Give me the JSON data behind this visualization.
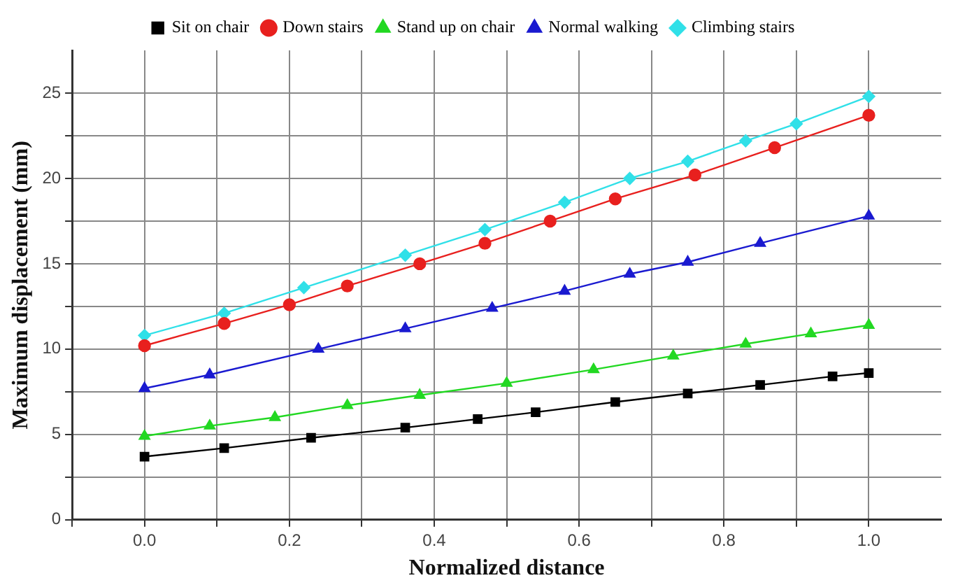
{
  "chart_data": {
    "type": "line",
    "xlabel": "Normalized distance",
    "ylabel": "Maximum displacement (mm)",
    "xlim": [
      -0.1,
      1.1
    ],
    "xticks": [
      {
        "value": -0.1,
        "label": null
      },
      "0.0",
      {
        "value": 0.1,
        "label": null
      },
      0.2,
      {
        "value": 0.3,
        "label": null
      },
      0.4,
      {
        "value": 0.5,
        "label": null
      },
      0.6,
      {
        "value": 0.7,
        "label": null
      },
      0.8,
      {
        "value": 0.9,
        "label": null
      },
      "1.0"
    ],
    "ylim": [
      0,
      27.5
    ],
    "yticks": [
      0,
      {
        "value": 2.5,
        "label": null
      },
      5,
      {
        "value": 7.5,
        "label": null
      },
      10,
      {
        "value": 12.5,
        "label": null
      },
      15,
      {
        "value": 17.5,
        "label": null
      },
      20,
      {
        "value": 22.5,
        "label": null
      },
      25
    ],
    "grid": true,
    "legend": "top",
    "line_style": "solid",
    "series": [
      {
        "name": "Sit on chair",
        "color": "#000000",
        "marker": "square",
        "x": [
          0,
          0.11,
          0.23,
          0.36,
          0.46,
          0.54,
          0.65,
          0.75,
          0.85,
          0.95,
          1.0
        ],
        "values": [
          3.7,
          4.2,
          4.8,
          5.4,
          5.9,
          6.3,
          6.9,
          7.4,
          7.9,
          8.4,
          8.6
        ]
      },
      {
        "name": "Down stairs",
        "color": "#e8201e",
        "marker": "circle",
        "x": [
          0,
          0.11,
          0.2,
          0.28,
          0.38,
          0.47,
          0.56,
          0.65,
          0.76,
          0.87,
          1.0
        ],
        "values": [
          10.2,
          11.5,
          12.6,
          13.7,
          15.0,
          16.2,
          17.5,
          18.8,
          20.2,
          21.8,
          23.7
        ]
      },
      {
        "name": "Stand up on chair",
        "color": "#22d822",
        "marker": "triangle",
        "x": [
          0,
          0.09,
          0.18,
          0.28,
          0.38,
          0.5,
          0.62,
          0.73,
          0.83,
          0.92,
          1.0
        ],
        "values": [
          4.9,
          5.5,
          6.0,
          6.7,
          7.3,
          8.0,
          8.8,
          9.6,
          10.3,
          10.9,
          11.4
        ]
      },
      {
        "name": "Normal walking",
        "color": "#1a1ad0",
        "marker": "triangle",
        "x": [
          0,
          0.09,
          0.24,
          0.36,
          0.48,
          0.58,
          0.67,
          0.75,
          0.85,
          1.0
        ],
        "values": [
          7.7,
          8.5,
          10.0,
          11.2,
          12.4,
          13.4,
          14.4,
          15.1,
          16.2,
          17.8
        ]
      },
      {
        "name": "Climbing stairs",
        "color": "#30e0e8",
        "marker": "diamond",
        "x": [
          0,
          0.11,
          0.22,
          0.36,
          0.47,
          0.58,
          0.67,
          0.75,
          0.83,
          0.9,
          1.0
        ],
        "values": [
          10.8,
          12.1,
          13.6,
          15.5,
          17.0,
          18.6,
          20.0,
          21.0,
          22.2,
          23.2,
          24.8
        ]
      }
    ]
  }
}
